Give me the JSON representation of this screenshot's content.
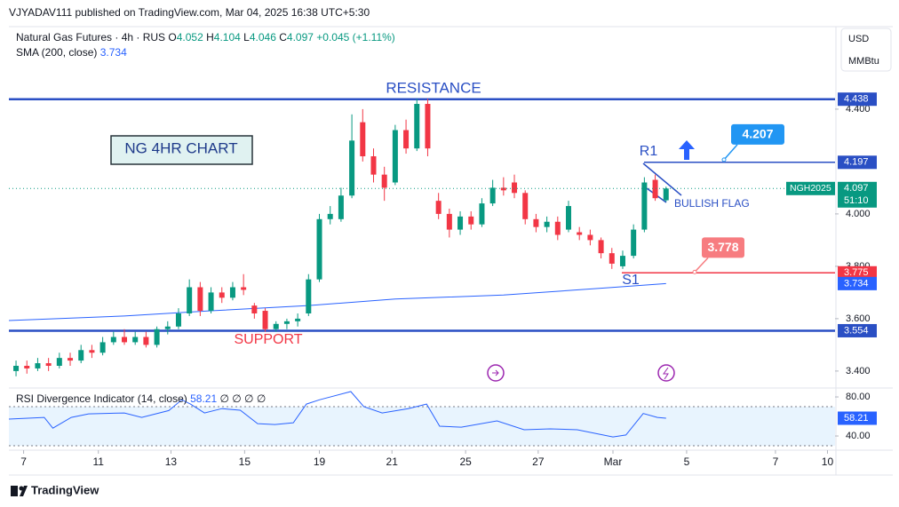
{
  "header": {
    "published": "VJYADAV111 published on TradingView.com, Mar 04, 2025 16:38 UTC+5:30",
    "currency": "USD",
    "unit": "MMBtu",
    "brand": "TradingView"
  },
  "chart_data": {
    "type": "candlestick",
    "symbol": "Natural Gas Futures · 4h · RUS",
    "change": "+0.045 (+1.11%)",
    "ohlc_letters": [
      "O",
      "H",
      "L",
      "C"
    ],
    "contract": "NGH2025",
    "countdown": "51:10",
    "up_color": "#089981",
    "down_color": "#f23645",
    "candles": [
      [
        3.4,
        3.44,
        3.38,
        3.42
      ],
      [
        3.42,
        3.44,
        3.39,
        3.41
      ],
      [
        3.41,
        3.45,
        3.4,
        3.43
      ],
      [
        3.43,
        3.45,
        3.4,
        3.42
      ],
      [
        3.42,
        3.47,
        3.41,
        3.45
      ],
      [
        3.45,
        3.47,
        3.42,
        3.44
      ],
      [
        3.44,
        3.5,
        3.43,
        3.48
      ],
      [
        3.48,
        3.5,
        3.45,
        3.47
      ],
      [
        3.47,
        3.53,
        3.46,
        3.51
      ],
      [
        3.51,
        3.55,
        3.5,
        3.53
      ],
      [
        3.53,
        3.56,
        3.5,
        3.51
      ],
      [
        3.51,
        3.55,
        3.5,
        3.53
      ],
      [
        3.53,
        3.55,
        3.49,
        3.5
      ],
      [
        3.5,
        3.57,
        3.49,
        3.56
      ],
      [
        3.56,
        3.59,
        3.54,
        3.57
      ],
      [
        3.57,
        3.64,
        3.56,
        3.62
      ],
      [
        3.62,
        3.75,
        3.61,
        3.72
      ],
      [
        3.72,
        3.74,
        3.61,
        3.63
      ],
      [
        3.63,
        3.72,
        3.62,
        3.7
      ],
      [
        3.7,
        3.72,
        3.66,
        3.68
      ],
      [
        3.68,
        3.74,
        3.67,
        3.72
      ],
      [
        3.72,
        3.77,
        3.69,
        3.71
      ],
      [
        3.65,
        3.66,
        3.6,
        3.62
      ],
      [
        3.63,
        3.64,
        3.55,
        3.56
      ],
      [
        3.56,
        3.59,
        3.55,
        3.58
      ],
      [
        3.58,
        3.6,
        3.56,
        3.59
      ],
      [
        3.59,
        3.62,
        3.57,
        3.6
      ],
      [
        3.62,
        3.77,
        3.61,
        3.75
      ],
      [
        3.75,
        4.0,
        3.74,
        3.98
      ],
      [
        3.98,
        4.03,
        3.96,
        4.0
      ],
      [
        3.98,
        4.1,
        3.97,
        4.07
      ],
      [
        4.07,
        4.38,
        4.06,
        4.28
      ],
      [
        4.35,
        4.4,
        4.2,
        4.22
      ],
      [
        4.22,
        4.25,
        4.12,
        4.15
      ],
      [
        4.15,
        4.18,
        4.05,
        4.1
      ],
      [
        4.12,
        4.34,
        4.11,
        4.32
      ],
      [
        4.32,
        4.36,
        4.23,
        4.25
      ],
      [
        4.25,
        4.44,
        4.24,
        4.42
      ],
      [
        4.42,
        4.44,
        4.22,
        4.25
      ],
      [
        4.05,
        4.08,
        3.98,
        4.0
      ],
      [
        4.0,
        4.02,
        3.91,
        3.94
      ],
      [
        3.94,
        4.01,
        3.92,
        3.99
      ],
      [
        3.99,
        4.01,
        3.94,
        3.96
      ],
      [
        3.96,
        4.06,
        3.95,
        4.04
      ],
      [
        4.04,
        4.13,
        4.03,
        4.1
      ],
      [
        4.1,
        4.14,
        4.07,
        4.09
      ],
      [
        4.12,
        4.15,
        4.06,
        4.08
      ],
      [
        4.08,
        4.09,
        3.96,
        3.98
      ],
      [
        3.98,
        4.0,
        3.93,
        3.95
      ],
      [
        3.95,
        3.99,
        3.93,
        3.97
      ],
      [
        3.97,
        3.99,
        3.9,
        3.92
      ],
      [
        3.94,
        4.05,
        3.93,
        4.03
      ],
      [
        3.93,
        3.95,
        3.9,
        3.92
      ],
      [
        3.92,
        3.94,
        3.88,
        3.9
      ],
      [
        3.9,
        3.91,
        3.83,
        3.85
      ],
      [
        3.85,
        3.87,
        3.79,
        3.81
      ],
      [
        3.8,
        3.86,
        3.79,
        3.84
      ],
      [
        3.84,
        3.96,
        3.83,
        3.94
      ],
      [
        3.94,
        4.14,
        3.93,
        4.12
      ],
      [
        4.13,
        4.15,
        4.05,
        4.06
      ],
      [
        4.052,
        4.104,
        4.046,
        4.097
      ]
    ],
    "xlim": [
      -0.66,
      75.6
    ],
    "xticks": [
      {
        "value": 0.7,
        "label": "7"
      },
      {
        "value": 7.6,
        "label": "11"
      },
      {
        "value": 14.3,
        "label": "13"
      },
      {
        "value": 21.1,
        "label": "15"
      },
      {
        "value": 28,
        "label": "19"
      },
      {
        "value": 34.7,
        "label": "21"
      },
      {
        "value": 41.5,
        "label": "25"
      },
      {
        "value": 48.2,
        "label": "27"
      },
      {
        "value": 55.1,
        "label": "Mar"
      },
      {
        "value": 61.9,
        "label": "5"
      },
      {
        "value": 70.1,
        "label": "7"
      },
      {
        "value": 74.9,
        "label": "10"
      }
    ],
    "ylim": [
      3.342,
      4.715
    ],
    "yticks": [
      {
        "value": 4.4,
        "label": "4.400"
      },
      {
        "value": 4.0,
        "label": "4.000"
      },
      {
        "value": 3.8,
        "label": "3.800"
      },
      {
        "value": 3.6,
        "label": "3.600"
      },
      {
        "value": 3.4,
        "label": "3.400"
      }
    ],
    "sma": {
      "name": "SMA (200, close)",
      "color": "#2962ff",
      "x": [
        -0.66,
        10,
        18,
        27,
        35,
        45,
        55,
        60
      ],
      "values": [
        3.593,
        3.61,
        3.63,
        3.65,
        3.675,
        3.69,
        3.719,
        3.734
      ]
    },
    "levels": [
      {
        "value": 4.438,
        "color": "#2a4fc4"
      },
      {
        "value": 4.197,
        "color": "#2a4fc4"
      },
      {
        "value": 3.775,
        "color": "#f23645"
      },
      {
        "value": 3.554,
        "color": "#2a4fc4"
      }
    ],
    "callouts": [
      {
        "value": 4.207,
        "color": "#2196f3"
      },
      {
        "value": 3.778,
        "color": "#f77c80"
      }
    ],
    "annotations": {
      "title_box": "NG 4HR CHART",
      "resistance": "RESISTANCE",
      "support": "SUPPORT",
      "r1": "R1",
      "s1": "S1",
      "pattern": "BULLISH FLAG"
    },
    "rsi": {
      "name": "RSI Divergence Indicator (14, close)",
      "extra": "∅ ∅ ∅ ∅",
      "color": "#2962ff",
      "x": [
        -0.66,
        2.6,
        3.4,
        5.1,
        6.7,
        10,
        11.6,
        14.1,
        15.3,
        16.1,
        17.4,
        19,
        20.7,
        22.3,
        23.9,
        25.6,
        26.8,
        28,
        30.9,
        32.1,
        33.8,
        36.2,
        37.9,
        39.1,
        41.1,
        44.4,
        46.9,
        49.3,
        51.8,
        55.1,
        56.3,
        57.9,
        59.2,
        60
      ],
      "values": [
        57.3,
        59,
        48,
        59,
        62.7,
        63.6,
        59,
        66,
        77,
        72.7,
        63.6,
        68,
        66.4,
        52.7,
        51.8,
        53.6,
        72.7,
        77,
        85.5,
        70,
        63.6,
        68,
        72.7,
        50,
        49,
        55.5,
        46.4,
        47.3,
        46.4,
        39,
        41,
        63,
        59,
        58.21
      ],
      "ylim": [
        27.3,
        86.4
      ],
      "yticks": [
        {
          "value": 80,
          "label": "80.00"
        },
        {
          "value": 40,
          "label": "40.00"
        }
      ],
      "band": [
        30,
        70
      ]
    }
  }
}
